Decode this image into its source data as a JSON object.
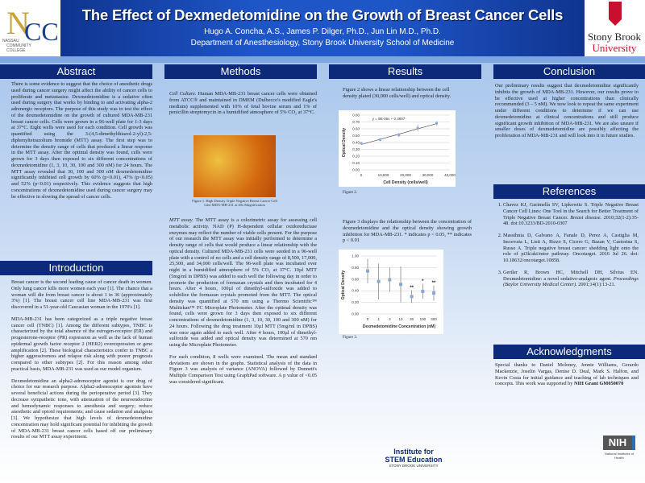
{
  "header": {
    "title": "The Effect of Dexmedetomidine on the Growth of Breast Cancer Cells",
    "authors": "Hugo A. Concha, A.S., James P. Dilger, Ph.D., Jun Lin M.D., Ph.D.",
    "department": "Department of Anesthesiology, Stony Brook University School of Medicine",
    "logo_left": "NCC NASSAU COMMUNITY COLLEGE",
    "logo_right": "Stony Brook University"
  },
  "colors": {
    "header_blue": "#1e56c8",
    "section_navy": "#0d2a7a"
  },
  "abstract": {
    "heading": "Abstract",
    "text": "There is some evidence to suggest that the choice of anesthetic drugs used during cancer surgery might affect the ability of cancer cells to proliferate and metastasize. Dexmedetomidine is a sedative often used during surgery that works by binding to and activating alpha-2 adrenergic receptors. The purpose of this study was to test the effect of the dexmedetomidine on the growth of cultured MDA-MB-231 breast cancer cells. Cells were grown in a 96-well plate for 1-3 days at 37°C. Eight wells were used for each condition. Cell growth was quantified using the 3-(4,5-dimethylthiazol-2-yl)-2,5-diphenyltetrazolium bromide (MTT) assay. The first step was to determine the density range of cells that produced a linear response in the MTT assay. After the optimal density was found, cells were grown for 3 days then exposed to six different concentrations of dexmedetomidine (1, 3, 10, 30, 100 and 300 nM) for 24 hours. The MTT assay revealed that 30, 100 and 300 nM dexmedetomidine significantly inhibited cell growth by 60% (p<0.01), 47% (p<0.05) and 52% (p<0.01) respectively. This evidence suggests that high concentrations of dexmedetomidine used during cancer surgery may be effective in slowing the spread of cancer cells."
  },
  "introduction": {
    "heading": "Introduction",
    "paragraphs": [
      "Breast cancer is the second leading cause of cancer death in women. Only lung cancer kills more women each year [1]. The chance that a woman will die from breast cancer is about 1 in 36 (approximately 3%) [1]. The breast cancer cell line MDA-MB-231 was first discovered in a 51-year-old Caucasian woman in the 1970's [1].",
      "MDA-MB-231 has been categorized as a triple negative breast cancer cell (TNBC) [1]. Among the different subtypes, TNBC is characterized by the total absence of the estrogen-receptor (ER) and progesterone-receptor (PR) expression as well as the lack of human epidermal growth factor receptor 2 (HER2) overexpression or gene amplification [2]. These biological characteristics confer to TNBC a higher aggressiveness and relapse risk along with poorer prognosis compared to other subtypes [2]. For this reason among other practical basis, MDA-MB-231 was used as our model organism.",
      "Dexmedetomidine an alpha2-adrenoceptor agonist is our drug of choice for our research purpose. Alpha2-adrenoceptor agonists have several beneficial actions during the perioperative period [3]. They decrease sympathetic tone, with attenuation of the neuroendocrine and hemodynamic responses to anesthesia and surgery; reduce anesthetic and opioid requirements; and cause sedation and analgesia [3]. We hypothesize that high levels of dexmedetomidine concentration may hold significant potential for inhibiting the growth of MDA-MB-231 breast cancer cells based off our preliminary results of our MTT assay experiment."
    ]
  },
  "methods": {
    "heading": "Methods",
    "cell_culture_label": "Cell Culture.",
    "cell_culture": " Human MDA-MB-231 breast cancer cells were obtained from ATCC® and maintained in DMEM (Dulbecco's modified Eagle's medium) supplemented with 10% of fetal bovine serum and 1% of penicillin streptomycin in a humidified atmosphere of 5% CO₂ at 37°C.",
    "figure1_caption": "Figure 1. High Density Triple Negative Breast Cancer Cell Line MDA-MB-231 at 40x Magnification",
    "mtt_label": "MTT assay.",
    "mtt": " The MTT assay is a colorimetric assay for assessing cell metabolic activity. NAD (P) H-dependent cellular oxidoreductase enzymes may reflect the number of viable cells present. For the purpose of our research the MTT assay was initially performed to determine a density range of cells that would produce a linear relationship with the optical density. Cultured MDA-MB-231 cells were seeded in a 96-well plate with a control of no cells and a cell density range of 8,500, 17,000, 25,500, and 34,000 cells/well. The 96-well plate was incubated over night in a humidified atmosphere of 5% CO₂ at 37°C. 10µl MTT (5mg/ml in DPBS) was added to each well the following day in order to promote the production of formazan crystals and then incubated for 4 hours. After 4 hours, 100µl of dimethyl-sulfoxide was added to solubilize the formazan crystals promoted from the MTT. The optical density was quantified at 570 nm using a Thermo Scientific™ Multiskan™ FC Microplate Photometer. After the optimal density was found, cells were grown for 3 days then exposed to six different concentrations of dexmedetomidine (1, 3, 10, 30, 100 and 300 nM) for 24 hours. Following the drug treatment 10µl MTT (5mg/ml in DPBS) was once again added to each well. After 4 hours, 100µl of dimethyl-sulfoxide was added and optical density was determined at 570 nm using the Microplate Photometer.",
    "stats": "For each condition, 8 wells were examined. The mean and standard deviations are shown in the graphs. Statistical analysis of the data in Figure 3 was analysis of variance (ANOVA) followed by Dunnett's Multiple Comparison Test using GraphPad software. A p value of <0.05 was considered significant."
  },
  "results": {
    "heading": "Results",
    "fig2_text": "Figure 2 shows a linear relationship between the cell density plated (30,000 cells/well) and optical density.",
    "fig2_caption": "Figure 2.",
    "fig3_text": "Figure 3 displays the relationship between the concentration of dexmedetomidine and the optical density showing growth inhibition for MDA-MB-231. * indicates p < 0.05, ** indicates p < 0.01",
    "fig3_caption": "Figure 3."
  },
  "chart_data": [
    {
      "type": "scatter",
      "xlabel": "Cell Density (cells/well)",
      "ylabel": "Optical Density",
      "xlim": [
        0,
        40000
      ],
      "ylim": [
        0,
        0.8
      ],
      "xticks": [
        "0",
        "10,000",
        "20,000",
        "30,000",
        "40,000"
      ],
      "yticks": [
        "0.00",
        "0.10",
        "0.20",
        "0.30",
        "0.40",
        "0.50",
        "0.60",
        "0.70",
        "0.80"
      ],
      "x": [
        0,
        8500,
        17000,
        25500,
        34000
      ],
      "y": [
        0.39,
        0.44,
        0.51,
        0.61,
        0.68
      ],
      "error": [
        0.01,
        0.02,
        0.03,
        0.05,
        0.03
      ],
      "trendline": {
        "equation": "y = 9E-06x + 0.3697",
        "slope": 9e-06,
        "intercept": 0.3697
      },
      "grid": true
    },
    {
      "type": "scatter",
      "xlabel": "Dexmedetomidine Concentration (nM)",
      "ylabel": "Optical Density",
      "ylim": [
        0,
        1
      ],
      "categories": [
        "0",
        "1",
        "3",
        "10",
        "30",
        "100",
        "300"
      ],
      "yticks": [
        "0.00",
        "0.20",
        "0.40",
        "0.60",
        "0.80",
        "1.00"
      ],
      "values": [
        0.74,
        0.56,
        0.59,
        0.51,
        0.3,
        0.39,
        0.36
      ],
      "error": [
        0.21,
        0.31,
        0.21,
        0.31,
        0.11,
        0.13,
        0.13
      ],
      "annotations": [
        "",
        "",
        "",
        "",
        "**",
        "*",
        "**"
      ],
      "grid": true
    }
  ],
  "conclusion": {
    "heading": "Conclusion",
    "text": "Our preliminary results suggest that dexmedetomidine significantly inhibits the growth of MDA-MB-231. However, our results prove to be effective used at higher concentrations than clinically recommended (3 – 5 nM). We now look to repeat the same experiment under different conditions to determine if we can use dexmedetomidine at clinical concentrations and still produce significant growth inhibition of MDA-MB-231. We are also unsure if smaller doses of dexmedetomidine are possibly affecting the proliferation of MDA-MB-231 and will look into it in future studies."
  },
  "references": {
    "heading": "References",
    "items": [
      {
        "text": "Chavez KJ, Garimella SV, Lipkowitz S. Triple Negative Breast Cancer Cell Lines: One Tool in the Search for Better Treatment of Triple Negative Breast Cancer. ",
        "journal": "Breast disease.",
        "rest": " 2010;32(1-2):35-48. doi:10.3233/BD-2010-0307"
      },
      {
        "text": "Massihnia D, Galvano A, Fanale D, Perez A, Castiglia M, Incorvaia L, Listi A, Rizzo S, Cicero G, Bazan V, Castorina S, Russo A. Triple negative breast cancer: shedding light onto the role of pi3k/akt/mtor pathway. Oncotarget. 2016 Jul 26. doi: 10.18632/oncotarget.10858.",
        "journal": "",
        "rest": ""
      },
      {
        "text": "Gertler R, Brown HC, Mitchell DH, Silvius EN. Dexmedetomidine: a novel sedative-analgesic agent. ",
        "journal": "Proceedings (Baylor University Medical Center).",
        "rest": " 2001;14(1):13-21."
      }
    ]
  },
  "acknowledgments": {
    "heading": "Acknowledgments",
    "text": "Special thanks to Daniel Moloney, Jennie Williams, Gerardo Mackenzie, Joselin Vargas, Denise D. Deal, Mark S. Halfon, and Kevin Costa for initial guidance and teaching of lab techniques and concepts. This work was supported by ",
    "bold": "NIH Grant GM050070"
  },
  "footer": {
    "stem_line1": "Institute for",
    "stem_line2": "STEM Education",
    "stem_line3": "STONY BROOK UNIVERSITY",
    "nih": "NIH",
    "nih_sub": "National Institutes of Health"
  }
}
